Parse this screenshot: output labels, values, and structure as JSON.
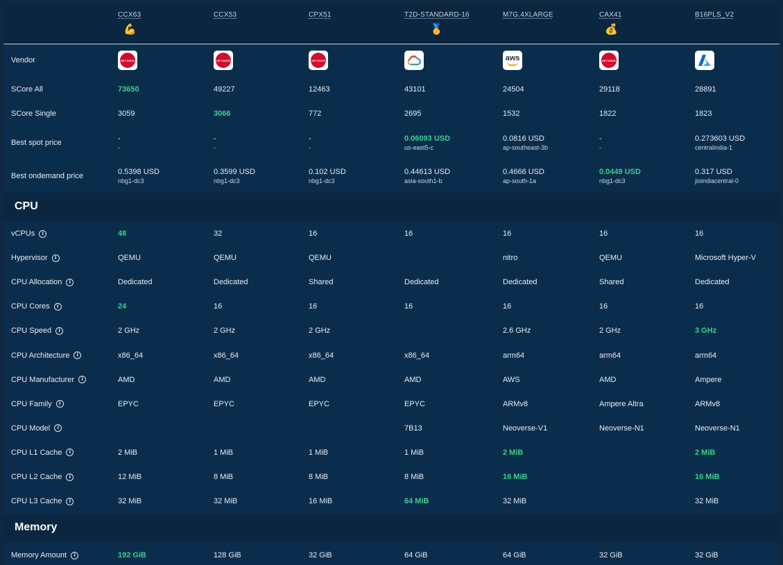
{
  "columns": [
    {
      "name": "CCX63",
      "medal": "💪"
    },
    {
      "name": "CCX53",
      "medal": ""
    },
    {
      "name": "CPX51",
      "medal": ""
    },
    {
      "name": "T2D-STANDARD-16",
      "medal": "🥇"
    },
    {
      "name": "M7G.4XLARGE",
      "medal": ""
    },
    {
      "name": "CAX41",
      "medal": "💰"
    },
    {
      "name": "B16PLS_V2",
      "medal": ""
    }
  ],
  "vendor": {
    "label": "Vendor",
    "logos": [
      "hetzner-logo",
      "hetzner-logo",
      "hetzner-logo",
      "google-cloud-logo",
      "aws-logo",
      "hetzner-logo",
      "azure-logo"
    ],
    "hetzner_text": "HETZNER",
    "aws_text": "aws"
  },
  "score_all": {
    "label": "SCore All",
    "values": [
      "73650",
      "49227",
      "12463",
      "43101",
      "24504",
      "29118",
      "28891"
    ],
    "best": [
      true,
      false,
      false,
      false,
      false,
      false,
      false
    ]
  },
  "score_single": {
    "label": "SCore Single",
    "values": [
      "3059",
      "3066",
      "772",
      "2695",
      "1532",
      "1822",
      "1823"
    ],
    "best": [
      false,
      true,
      false,
      false,
      false,
      false,
      false
    ]
  },
  "spot_price": {
    "label": "Best spot price",
    "prices": [
      "-",
      "-",
      "-",
      "0.06093 USD",
      "0.0816 USD",
      "-",
      "0.273603 USD"
    ],
    "regions": [
      "-",
      "-",
      "-",
      "us-east5-c",
      "ap-southeast-3b",
      "-",
      "centralindia-1"
    ],
    "best": [
      false,
      false,
      false,
      true,
      false,
      false,
      false
    ]
  },
  "ondemand_price": {
    "label": "Best ondemand price",
    "prices": [
      "0.5398 USD",
      "0.3599 USD",
      "0.102 USD",
      "0.44613 USD",
      "0.4666 USD",
      "0.0449 USD",
      "0.317 USD"
    ],
    "regions": [
      "nbg1-dc3",
      "nbg1-dc3",
      "nbg1-dc3",
      "asia-south1-b",
      "ap-south-1a",
      "nbg1-dc3",
      "jioindiacentral-0"
    ],
    "best": [
      false,
      false,
      false,
      false,
      false,
      true,
      false
    ]
  },
  "sections": {
    "cpu": "CPU",
    "memory": "Memory"
  },
  "cpu_rows": [
    {
      "label": "vCPUs",
      "values": [
        "48",
        "32",
        "16",
        "16",
        "16",
        "16",
        "16"
      ],
      "best": [
        0
      ]
    },
    {
      "label": "Hypervisor",
      "values": [
        "QEMU",
        "QEMU",
        "QEMU",
        "",
        "nitro",
        "QEMU",
        "Microsoft Hyper-V"
      ],
      "best": []
    },
    {
      "label": "CPU Allocation",
      "values": [
        "Dedicated",
        "Dedicated",
        "Shared",
        "Dedicated",
        "Dedicated",
        "Shared",
        "Dedicated"
      ],
      "best": []
    },
    {
      "label": "CPU Cores",
      "values": [
        "24",
        "16",
        "16",
        "16",
        "16",
        "16",
        "16"
      ],
      "best": [
        0
      ]
    },
    {
      "label": "CPU Speed",
      "values": [
        "2 GHz",
        "2 GHz",
        "2 GHz",
        "",
        "2.6 GHz",
        "2 GHz",
        "3 GHz"
      ],
      "best": [
        6
      ]
    },
    {
      "label": "CPU Architecture",
      "values": [
        "x86_64",
        "x86_64",
        "x86_64",
        "x86_64",
        "arm64",
        "arm64",
        "arm64"
      ],
      "best": []
    },
    {
      "label": "CPU Manufacturer",
      "values": [
        "AMD",
        "AMD",
        "AMD",
        "AMD",
        "AWS",
        "AMD",
        "Ampere"
      ],
      "best": []
    },
    {
      "label": "CPU Family",
      "values": [
        "EPYC",
        "EPYC",
        "EPYC",
        "EPYC",
        "ARMv8",
        "Ampere Altra",
        "ARMv8"
      ],
      "best": []
    },
    {
      "label": "CPU Model",
      "values": [
        "",
        "",
        "",
        "7B13",
        "Neoverse-V1",
        "Neoverse-N1",
        "Neoverse-N1"
      ],
      "best": []
    },
    {
      "label": "CPU L1 Cache",
      "values": [
        "2 MiB",
        "1 MiB",
        "1 MiB",
        "1 MiB",
        "2 MiB",
        "",
        "2 MiB"
      ],
      "best": [
        4,
        6
      ]
    },
    {
      "label": "CPU L2 Cache",
      "values": [
        "12 MiB",
        "8 MiB",
        "8 MiB",
        "8 MiB",
        "16 MiB",
        "",
        "16 MiB"
      ],
      "best": [
        4,
        6
      ]
    },
    {
      "label": "CPU L3 Cache",
      "values": [
        "32 MiB",
        "32 MiB",
        "16 MiB",
        "64 MiB",
        "32 MiB",
        "",
        "32 MiB"
      ],
      "best": [
        3
      ]
    }
  ],
  "memory_rows": [
    {
      "label": "Memory Amount",
      "values": [
        "192 GiB",
        "128 GiB",
        "32 GiB",
        "64 GiB",
        "64 GiB",
        "32 GiB",
        "32 GiB"
      ],
      "best": [
        0
      ]
    }
  ],
  "info_icon_text": "i",
  "colors": {
    "background": "#0e2841",
    "panel": "#0b2d4c",
    "section": "#0a2640",
    "best": "#3ecf8e",
    "text": "#e6edf3"
  }
}
